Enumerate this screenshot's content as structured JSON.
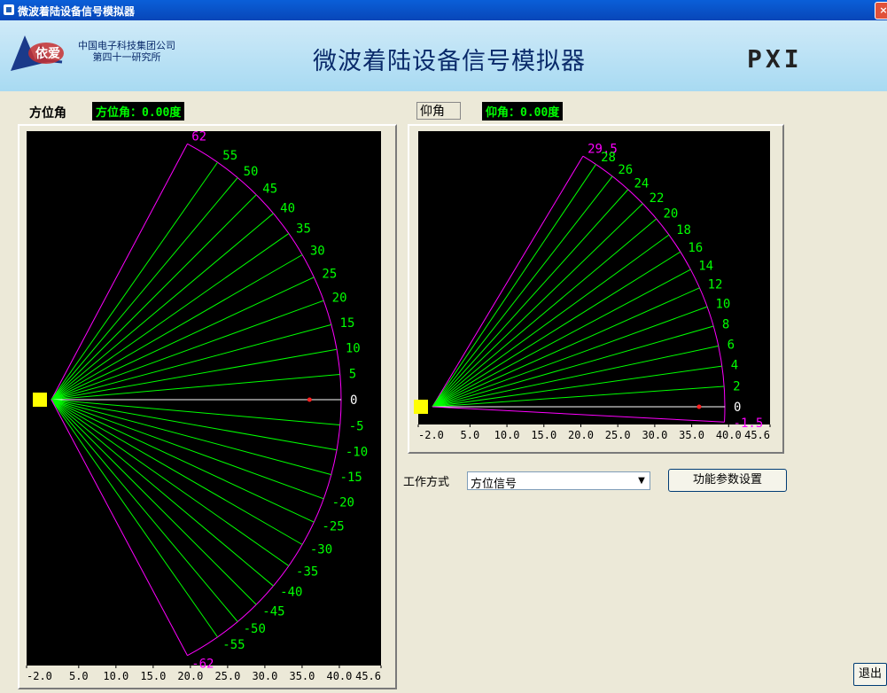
{
  "window": {
    "title": "微波着陆设备信号模拟器",
    "close_label": "×"
  },
  "banner": {
    "logo_text": "依爱",
    "company_line1": "中国电子科技集团公司",
    "company_line2": "第四十一研究所",
    "title": "微波着陆设备信号模拟器",
    "pxi": "PXI"
  },
  "azimuth": {
    "label": "方位角",
    "readout": "方位角：0.00度",
    "angles": [
      62,
      55,
      50,
      45,
      40,
      35,
      30,
      25,
      20,
      15,
      10,
      5,
      0,
      -5,
      -10,
      -15,
      -20,
      -25,
      -30,
      -35,
      -40,
      -45,
      -50,
      -55,
      -62
    ],
    "x_ticks": [
      "-2.0",
      "5.0",
      "10.0",
      "15.0",
      "20.0",
      "25.0",
      "30.0",
      "35.0",
      "40.0",
      "45.6"
    ],
    "x_range": [
      -2.0,
      45.6
    ],
    "target": 36.0
  },
  "elevation": {
    "label": "仰角",
    "readout": "仰角：0.00度",
    "angles": [
      29.5,
      28,
      26,
      24,
      22,
      20,
      18,
      16,
      14,
      12,
      10,
      8,
      6,
      4,
      2,
      0,
      -1.5
    ],
    "x_ticks": [
      "-2.0",
      "5.0",
      "10.0",
      "15.0",
      "20.0",
      "25.0",
      "30.0",
      "35.0",
      "40.0",
      "45.6"
    ],
    "x_range": [
      -2.0,
      45.6
    ],
    "target": 36.0
  },
  "controls": {
    "mode_label": "工作方式",
    "mode_value": "方位信号",
    "settings_button": "功能参数设置",
    "exit_button": "退出"
  },
  "colors": {
    "ray": "#00FF00",
    "boundary": "#FF00FF",
    "zero": "#FFFFFF",
    "marker": "#FFFF00",
    "target": "#FF2020"
  }
}
